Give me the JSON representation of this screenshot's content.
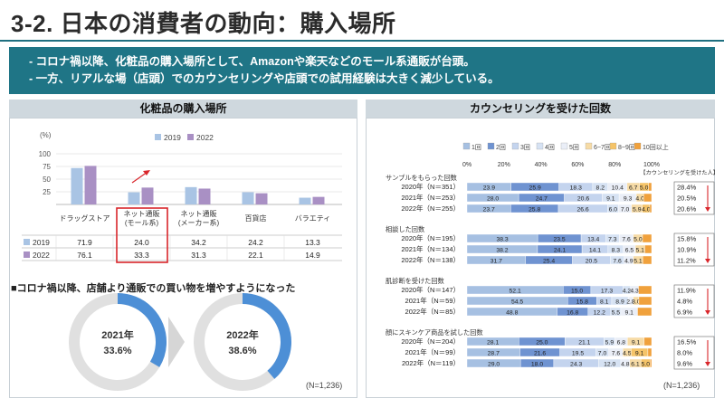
{
  "page": {
    "title": "3-2. 日本の消費者の動向：購入場所",
    "bullets": [
      "- コロナ禍以降、化粧品の購入場所として、Amazonや楽天などのモール系通販が台頭。",
      "- 一方、リアルな場（店頭）でのカウンセリングや店頭での試用経験は大きく減少している。"
    ],
    "left_panel_title": "化粧品の購入場所",
    "right_panel_title": "カウンセリングを受けた回数",
    "donut_heading": "■コロナ禍以降、店舗より通販での買い物を増やすようになった",
    "left_note": "(N=1,236)",
    "right_note": "(N=1,236)"
  },
  "colors": {
    "s2019": "#a9c4e4",
    "s2022": "#a990c4",
    "donut_fill": "#4d8fd6",
    "donut_rest": "#e0e0e0",
    "highlight": "#d9262b"
  },
  "chart_data": [
    {
      "type": "bar",
      "ylabel": "(%)",
      "ylim": [
        0,
        100
      ],
      "yticks": [
        "100",
        "75",
        "50",
        "25"
      ],
      "categories": [
        "ドラッグストア",
        "ネット通販\n(モール系)",
        "ネット通販\n(メーカー系)",
        "百貨店",
        "バラエティ"
      ],
      "series": [
        {
          "name": "2019",
          "values": [
            71.9,
            24.0,
            34.2,
            24.2,
            13.3
          ]
        },
        {
          "name": "2022",
          "values": [
            76.1,
            33.3,
            31.3,
            22.1,
            14.9
          ]
        }
      ],
      "table": {
        "rows": [
          {
            "label": "2019",
            "values": [
              "71.9",
              "24.0",
              "34.2",
              "24.2",
              "13.3"
            ]
          },
          {
            "label": "2022",
            "values": [
              "76.1",
              "33.3",
              "31.3",
              "22.1",
              "14.9"
            ]
          }
        ]
      },
      "legend": "top-center"
    },
    {
      "type": "pie",
      "variant": "donut",
      "label": "2021年",
      "value": 33.6,
      "value_label": "33.6%"
    },
    {
      "type": "pie",
      "variant": "donut",
      "label": "2022年",
      "value": 38.6,
      "value_label": "38.6%"
    },
    {
      "type": "bar",
      "variant": "stacked-horizontal-100",
      "xticks": [
        "0%",
        "20%",
        "40%",
        "60%",
        "80%",
        "100%"
      ],
      "legend": [
        "1回",
        "2回",
        "3回",
        "4回",
        "5回",
        "6~7回",
        "8~9回",
        "10回以上"
      ],
      "legend_colors": [
        "#a6c0e2",
        "#6f93d1",
        "#c4d4ee",
        "#d6e2f3",
        "#eaeef7",
        "#f6dba6",
        "#f5c469",
        "#f0a13c"
      ],
      "side_header": "【カウンセリングを受けた人】",
      "groups": [
        {
          "title": "サンプルをもらった回数",
          "rows": [
            {
              "label": "2020年（N＝351）",
              "values": [
                23.9,
                25.9,
                18.3,
                8.2,
                10.4,
                6.7,
                5.0
              ],
              "labels": [
                "23.9",
                "25.9",
                "18.3",
                "8.2",
                "10.4",
                "6.7",
                "5.0"
              ],
              "side": "28.4%"
            },
            {
              "label": "2021年（N＝253）",
              "values": [
                28.0,
                24.7,
                20.6,
                9.1,
                9.3,
                4.0
              ],
              "labels": [
                "28.0",
                "24.7",
                "20.6",
                "9.1",
                "9.3",
                "4.0"
              ],
              "side": "20.5%"
            },
            {
              "label": "2022年（N＝255）",
              "values": [
                23.7,
                25.8,
                26.6,
                6.0,
                7.0,
                5.9,
                4.0
              ],
              "labels": [
                "23.7",
                "25.8",
                "26.6",
                "6.0",
                "7.0",
                "5.9",
                "4.0"
              ],
              "side": "20.6%"
            }
          ]
        },
        {
          "title": "相談した回数",
          "rows": [
            {
              "label": "2020年（N＝195）",
              "values": [
                38.3,
                23.5,
                13.4,
                7.3,
                7.6,
                5.0
              ],
              "labels": [
                "38.3",
                "23.5",
                "13.4",
                "7.3",
                "7.6",
                "5.0"
              ],
              "side": "15.8%"
            },
            {
              "label": "2021年（N＝134）",
              "values": [
                38.2,
                24.1,
                14.1,
                8.3,
                6.5,
                5.1
              ],
              "labels": [
                "38.2",
                "24.1",
                "14.1",
                "8.3",
                "6.5",
                "5.1"
              ],
              "side": "10.9%"
            },
            {
              "label": "2022年（N＝138）",
              "values": [
                31.7,
                25.4,
                20.5,
                7.6,
                4.9,
                5.1
              ],
              "labels": [
                "31.7",
                "25.4",
                "20.5",
                "7.6",
                "4.9",
                "5.1"
              ],
              "side": "11.2%"
            }
          ]
        },
        {
          "title": "肌診断を受けた回数",
          "rows": [
            {
              "label": "2020年（N＝147）",
              "values": [
                52.1,
                15.0,
                17.3,
                4.2,
                4.3
              ],
              "labels": [
                "52.1",
                "15.0",
                "17.3",
                "4.2",
                "4.3"
              ],
              "side": "11.9%"
            },
            {
              "label": "2021年（N＝59）",
              "values": [
                54.5,
                15.8,
                8.1,
                8.9,
                2.8,
                3.0
              ],
              "labels": [
                "54.5",
                "15.8",
                "8.1",
                "8.9",
                "2.8",
                "3.0"
              ],
              "side": "4.8%"
            },
            {
              "label": "2022年（N＝85）",
              "values": [
                48.8,
                16.8,
                12.2,
                5.5,
                9.1
              ],
              "labels": [
                "48.8",
                "16.8",
                "12.2",
                "5.5",
                "9.1"
              ],
              "side": "6.9%"
            }
          ]
        },
        {
          "title": "顔にスキンケア商品を試した回数",
          "rows": [
            {
              "label": "2020年（N＝204）",
              "values": [
                28.1,
                25.0,
                21.1,
                5.9,
                6.8,
                9.1
              ],
              "labels": [
                "28.1",
                "25.0",
                "21.1",
                "5.9",
                "6.8",
                "9.1"
              ],
              "side": "16.5%"
            },
            {
              "label": "2021年（N＝99）",
              "values": [
                28.7,
                21.6,
                19.5,
                7.0,
                7.6,
                4.5,
                9.1
              ],
              "labels": [
                "28.7",
                "21.6",
                "19.5",
                "7.0",
                "7.6",
                "4.5",
                "9.1"
              ],
              "side": "8.0%"
            },
            {
              "label": "2022年（N＝119）",
              "values": [
                29.0,
                18.0,
                24.3,
                12.0,
                4.8,
                6.1,
                5.0
              ],
              "labels": [
                "29.0",
                "18.0",
                "24.3",
                "12.0",
                "4.8",
                "6.1",
                "5.0"
              ],
              "side": "9.6%"
            }
          ]
        }
      ]
    }
  ]
}
